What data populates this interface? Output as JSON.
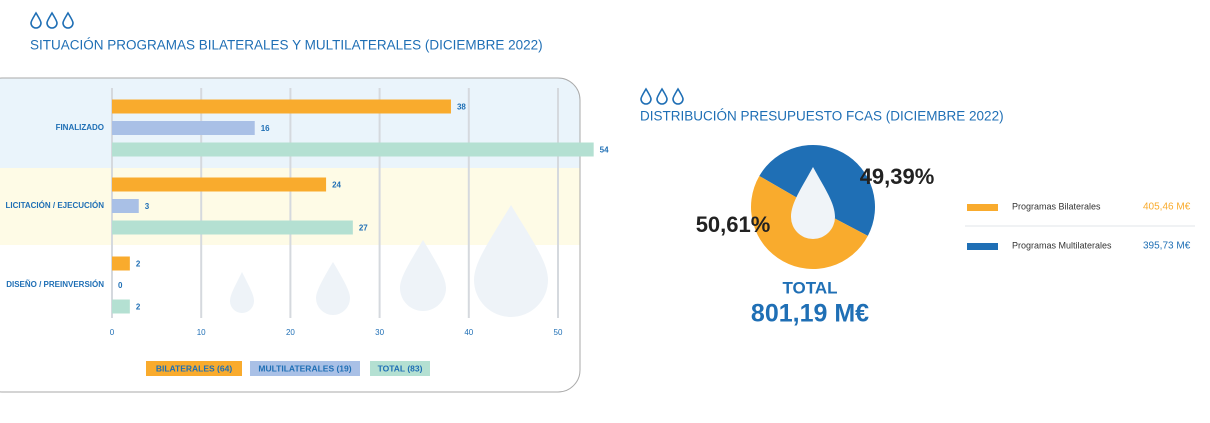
{
  "chart_data": [
    {
      "type": "hbar",
      "title": "SITUACIÓN PROGRAMAS BILATERALES Y MULTILATERALES (DICIEMBRE 2022)",
      "categories": [
        "FINALIZADO",
        "LICITACIÓN / EJECUCIÓN",
        "DISEÑO / PREINVERSIÓN"
      ],
      "series": [
        {
          "name": "BILATERALES (64)",
          "color": "#f9ab2d",
          "values": [
            38,
            24,
            2
          ]
        },
        {
          "name": "MULTILATERALES (19)",
          "color": "#a9c0e6",
          "values": [
            16,
            3,
            0
          ]
        },
        {
          "name": "TOTAL (83)",
          "color": "#b4e0d2",
          "values": [
            54,
            27,
            2
          ]
        }
      ],
      "xlim": [
        0,
        50
      ],
      "xticks": [
        0,
        10,
        20,
        30,
        40,
        50
      ],
      "grid": true,
      "legend": "bottom"
    },
    {
      "type": "pie",
      "title": "DISTRIBUCIÓN PRESUPUESTO FCAS (DICIEMBRE 2022)",
      "categories": [
        "Programas Bilaterales",
        "Programas Multilaterales"
      ],
      "values": [
        50.61,
        49.39
      ],
      "value_labels": [
        "50,61%",
        "49,39%"
      ],
      "colors": [
        "#f9ab2d",
        "#1f6fb5"
      ],
      "amounts": [
        405.46,
        395.73
      ],
      "amount_labels": [
        "405,46 M€",
        "395,73 M€"
      ],
      "total_title": "TOTAL",
      "total": 801.19,
      "total_label": "801,19 M€",
      "legend": "right"
    }
  ]
}
